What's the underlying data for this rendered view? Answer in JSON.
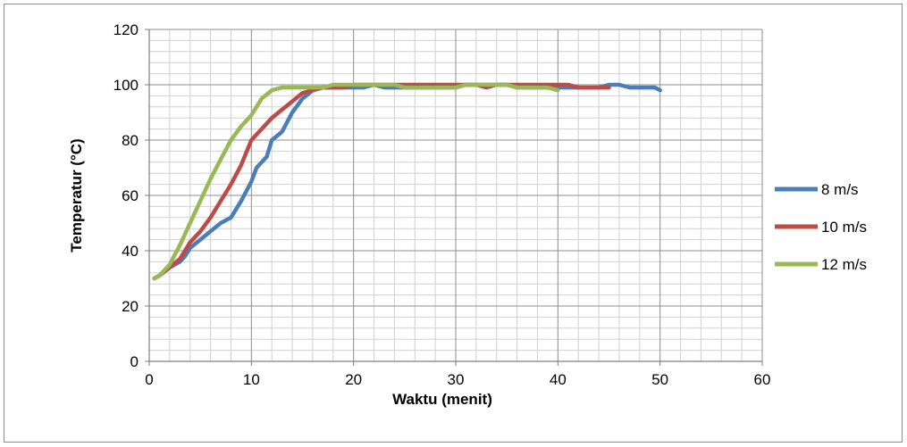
{
  "chart_data": {
    "type": "line",
    "title": "",
    "xlabel": "Waktu (menit)",
    "ylabel": "Temperatur (°C)",
    "xlim": [
      0,
      60
    ],
    "ylim": [
      0,
      120
    ],
    "x_ticks": [
      0,
      10,
      20,
      30,
      40,
      50,
      60
    ],
    "y_ticks": [
      0,
      20,
      40,
      60,
      80,
      100,
      120
    ],
    "x_tick_labels": [
      "0",
      "10",
      "20",
      "30",
      "40",
      "50",
      "60"
    ],
    "y_tick_labels": [
      "0",
      "20",
      "40",
      "60",
      "80",
      "100",
      "120"
    ],
    "grid": true,
    "legend_position": "right",
    "series": [
      {
        "name": "8 m/s",
        "color": "#4a7ebb",
        "points": [
          [
            0.5,
            30
          ],
          [
            1,
            31
          ],
          [
            2,
            34
          ],
          [
            3,
            36
          ],
          [
            3.5,
            38
          ],
          [
            4,
            41
          ],
          [
            5,
            44
          ],
          [
            6,
            47
          ],
          [
            7,
            50
          ],
          [
            8,
            52
          ],
          [
            9,
            58
          ],
          [
            10,
            65
          ],
          [
            10.5,
            70
          ],
          [
            11.5,
            74
          ],
          [
            12,
            80
          ],
          [
            13,
            83
          ],
          [
            14,
            90
          ],
          [
            15,
            95
          ],
          [
            16,
            98
          ],
          [
            17,
            99
          ],
          [
            18,
            99
          ],
          [
            19,
            99
          ],
          [
            20,
            99
          ],
          [
            21,
            99
          ],
          [
            22,
            100
          ],
          [
            23,
            99
          ],
          [
            24,
            99
          ],
          [
            25,
            99
          ],
          [
            26,
            99
          ],
          [
            27,
            99
          ],
          [
            28,
            99
          ],
          [
            29,
            99
          ],
          [
            30,
            99
          ],
          [
            31,
            100
          ],
          [
            32,
            100
          ],
          [
            33,
            100
          ],
          [
            34,
            100
          ],
          [
            35,
            100
          ],
          [
            36,
            99
          ],
          [
            37,
            99
          ],
          [
            38,
            99
          ],
          [
            39,
            99
          ],
          [
            40,
            99
          ],
          [
            41,
            99
          ],
          [
            42,
            99
          ],
          [
            43,
            99
          ],
          [
            44,
            99
          ],
          [
            45,
            100
          ],
          [
            46,
            100
          ],
          [
            47,
            99
          ],
          [
            48,
            99
          ],
          [
            49,
            99
          ],
          [
            49.5,
            99
          ],
          [
            50,
            98
          ]
        ]
      },
      {
        "name": "10 m/s",
        "color": "#be4b48",
        "points": [
          [
            0.5,
            30
          ],
          [
            1,
            31
          ],
          [
            2,
            34
          ],
          [
            3,
            37
          ],
          [
            3.5,
            40
          ],
          [
            4,
            43
          ],
          [
            5,
            47
          ],
          [
            6,
            52
          ],
          [
            7,
            58
          ],
          [
            8,
            64
          ],
          [
            9,
            71
          ],
          [
            10,
            80
          ],
          [
            11,
            84
          ],
          [
            12,
            88
          ],
          [
            13,
            91
          ],
          [
            14,
            94
          ],
          [
            15,
            97
          ],
          [
            16,
            98
          ],
          [
            17,
            99
          ],
          [
            18,
            99
          ],
          [
            19,
            99
          ],
          [
            20,
            100
          ],
          [
            21,
            100
          ],
          [
            22,
            100
          ],
          [
            23,
            100
          ],
          [
            24,
            100
          ],
          [
            25,
            100
          ],
          [
            26,
            100
          ],
          [
            27,
            100
          ],
          [
            28,
            100
          ],
          [
            29,
            100
          ],
          [
            30,
            100
          ],
          [
            31,
            100
          ],
          [
            32,
            100
          ],
          [
            33,
            99
          ],
          [
            34,
            100
          ],
          [
            35,
            100
          ],
          [
            36,
            100
          ],
          [
            37,
            100
          ],
          [
            38,
            100
          ],
          [
            39,
            100
          ],
          [
            40,
            100
          ],
          [
            41,
            100
          ],
          [
            42,
            99
          ],
          [
            43,
            99
          ],
          [
            44,
            99
          ],
          [
            45,
            99
          ]
        ]
      },
      {
        "name": "12 m/s",
        "color": "#98b954",
        "points": [
          [
            0.5,
            30
          ],
          [
            1,
            31
          ],
          [
            2,
            35
          ],
          [
            3,
            42
          ],
          [
            4,
            50
          ],
          [
            5,
            58
          ],
          [
            6,
            66
          ],
          [
            7,
            73
          ],
          [
            8,
            80
          ],
          [
            9,
            85
          ],
          [
            10,
            89
          ],
          [
            11,
            95
          ],
          [
            12,
            98
          ],
          [
            13,
            99
          ],
          [
            14,
            99
          ],
          [
            15,
            99
          ],
          [
            16,
            99
          ],
          [
            17,
            99
          ],
          [
            18,
            100
          ],
          [
            19,
            100
          ],
          [
            20,
            100
          ],
          [
            21,
            100
          ],
          [
            22,
            100
          ],
          [
            23,
            100
          ],
          [
            24,
            100
          ],
          [
            25,
            99
          ],
          [
            26,
            99
          ],
          [
            27,
            99
          ],
          [
            28,
            99
          ],
          [
            29,
            99
          ],
          [
            30,
            99
          ],
          [
            31,
            100
          ],
          [
            32,
            100
          ],
          [
            33,
            100
          ],
          [
            34,
            100
          ],
          [
            35,
            100
          ],
          [
            36,
            99
          ],
          [
            37,
            99
          ],
          [
            38,
            99
          ],
          [
            39,
            99
          ],
          [
            40,
            98
          ]
        ]
      }
    ]
  }
}
